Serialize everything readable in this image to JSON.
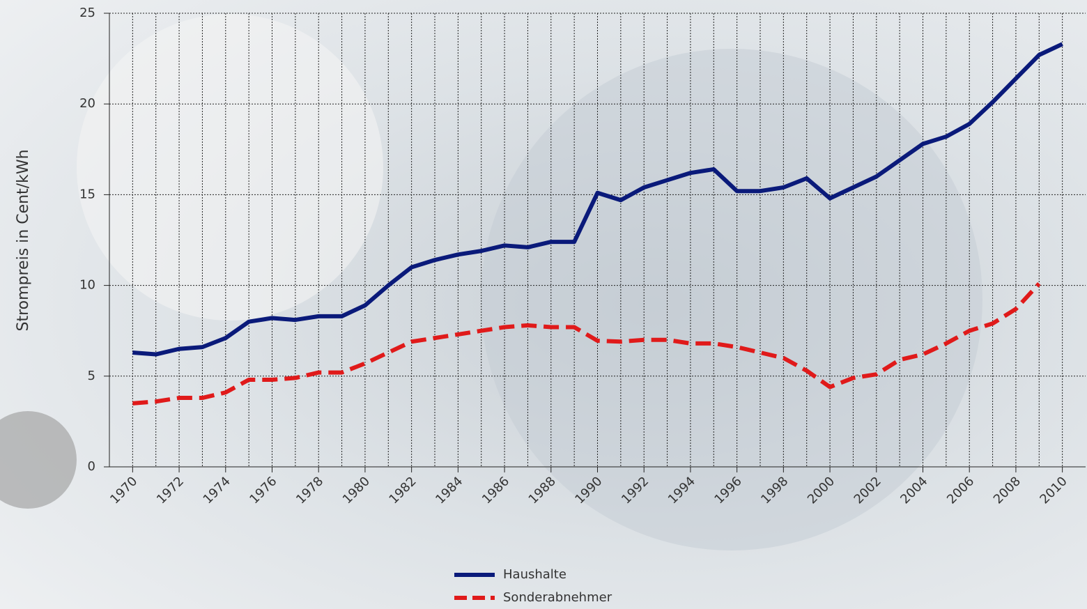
{
  "chart_data": {
    "type": "line",
    "y_label": "Strompreis in Cent/kWh",
    "x": [
      1970,
      1971,
      1972,
      1973,
      1974,
      1975,
      1976,
      1977,
      1978,
      1979,
      1980,
      1981,
      1982,
      1983,
      1984,
      1985,
      1986,
      1987,
      1988,
      1989,
      1990,
      1991,
      1992,
      1993,
      1994,
      1995,
      1996,
      1997,
      1998,
      1999,
      2000,
      2001,
      2002,
      2003,
      2004,
      2005,
      2006,
      2007,
      2008,
      2009,
      2010
    ],
    "series": [
      {
        "name": "Haushalte",
        "color": "#0a1a7a",
        "dash": false,
        "values": [
          6.3,
          6.2,
          6.5,
          6.6,
          7.1,
          8.0,
          8.2,
          8.1,
          8.3,
          8.3,
          8.9,
          10.0,
          11.0,
          11.4,
          11.7,
          11.9,
          12.2,
          12.1,
          12.4,
          12.4,
          15.1,
          14.7,
          15.4,
          15.8,
          16.2,
          16.4,
          15.2,
          15.2,
          15.4,
          15.9,
          14.8,
          15.4,
          16.0,
          16.9,
          17.8,
          18.2,
          18.9,
          20.1,
          21.4,
          22.7,
          23.3
        ]
      },
      {
        "name": "Sonderabnehmer",
        "color": "#e01a1a",
        "dash": true,
        "values": [
          3.5,
          3.6,
          3.8,
          3.8,
          4.1,
          4.8,
          4.8,
          4.9,
          5.2,
          5.2,
          5.7,
          6.3,
          6.9,
          7.1,
          7.3,
          7.5,
          7.7,
          7.8,
          7.7,
          7.7,
          6.95,
          6.9,
          7.0,
          7.0,
          6.8,
          6.8,
          6.6,
          6.3,
          6.0,
          5.3,
          4.4,
          4.9,
          5.1,
          5.9,
          6.2,
          6.8,
          7.5,
          7.9,
          8.7,
          10.1,
          null
        ]
      }
    ],
    "xlim": [
      1969,
      2011
    ],
    "xticks": [
      1970,
      1972,
      1974,
      1976,
      1978,
      1980,
      1982,
      1984,
      1986,
      1988,
      1990,
      1992,
      1994,
      1996,
      1998,
      2000,
      2002,
      2004,
      2006,
      2008,
      2010
    ],
    "ylim": [
      0,
      25
    ],
    "yticks": [
      0,
      5,
      10,
      15,
      20,
      25
    ],
    "grid": true
  }
}
